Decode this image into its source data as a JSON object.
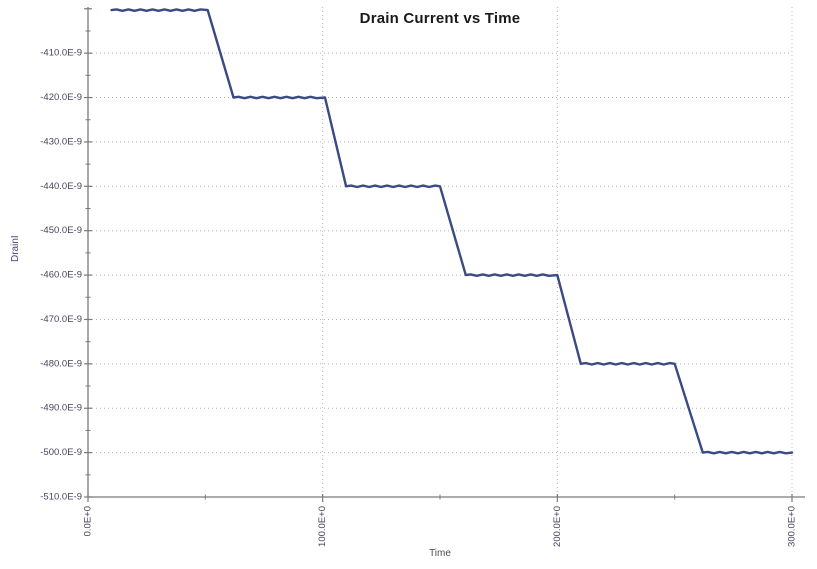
{
  "window": {
    "background": "#ffffff"
  },
  "chart_data": {
    "type": "line",
    "title": "Drain Current vs Time",
    "xlabel": "Time",
    "ylabel": "DrainI",
    "x_unit_suffix": "E+0",
    "y_unit_suffix": "E-9",
    "xlim": [
      0,
      300
    ],
    "ylim_nA": [
      -510,
      -399.6
    ],
    "grid": {
      "horizontal": true,
      "vertical": true,
      "style": "dotted"
    },
    "legend": null,
    "x_major_ticks": [
      {
        "value": 0,
        "label": "0.0E+0"
      },
      {
        "value": 100,
        "label": "100.0E+0"
      },
      {
        "value": 200,
        "label": "200.0E+0"
      },
      {
        "value": 300,
        "label": "300.0E+0"
      }
    ],
    "x_minor_ticks": [
      50,
      150,
      250
    ],
    "y_major_ticks": [
      {
        "value": -400,
        "label": ""
      },
      {
        "value": -410,
        "label": "-410.0E-9"
      },
      {
        "value": -420,
        "label": "-420.0E-9"
      },
      {
        "value": -430,
        "label": "-430.0E-9"
      },
      {
        "value": -440,
        "label": "-440.0E-9"
      },
      {
        "value": -450,
        "label": "-450.0E-9"
      },
      {
        "value": -460,
        "label": "-460.0E-9"
      },
      {
        "value": -470,
        "label": "-470.0E-9"
      },
      {
        "value": -480,
        "label": "-480.0E-9"
      },
      {
        "value": -490,
        "label": "-490.0E-9"
      },
      {
        "value": -500,
        "label": "-500.0E-9"
      },
      {
        "value": -510,
        "label": "-510.0E-9"
      }
    ],
    "y_minor_ticks": [
      -405,
      -415,
      -425,
      -435,
      -445,
      -455,
      -465,
      -475,
      -485,
      -495,
      -505
    ],
    "series": [
      {
        "name": "DrainI",
        "color": "#3a4a82",
        "points_t_nA": [
          [
            10,
            -400.3
          ],
          [
            51,
            -400.3
          ],
          [
            62,
            -420.0
          ],
          [
            101,
            -420.0
          ],
          [
            110,
            -440.0
          ],
          [
            150,
            -440.0
          ],
          [
            161,
            -460.0
          ],
          [
            200,
            -460.0
          ],
          [
            210,
            -480.0
          ],
          [
            250,
            -480.0
          ],
          [
            262,
            -500.0
          ],
          [
            300,
            -500.0
          ]
        ]
      }
    ]
  },
  "styles": {
    "line_color": "#3a4a82",
    "grid_color": "#b5b5b5",
    "axis_color": "#7a7a7a",
    "tick_label_color": "#46465e",
    "title_color": "#1a1a1a",
    "xlabel_color": "#4d4d4d",
    "ylabel_color": "#45457f",
    "plot_background": "#ffffff"
  }
}
